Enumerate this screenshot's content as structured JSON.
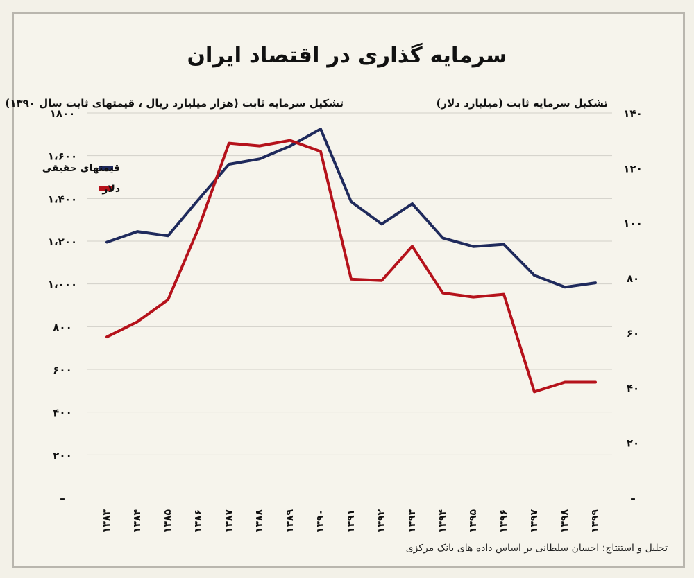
{
  "title": "سرمایه گذاری در اقتصاد ایران",
  "credit": "تحلیل و استنتاج: احسان سلطانی بر اساس داده های بانک مرکزی",
  "colors": {
    "real_prices": "#1f2a5c",
    "dollar": "#b5121b",
    "grid": "#d2d0c9"
  },
  "chart_data": {
    "type": "line",
    "x": [
      "۱۳۸۳",
      "۱۳۸۴",
      "۱۳۸۵",
      "۱۳۸۶",
      "۱۳۸۷",
      "۱۳۸۸",
      "۱۳۸۹",
      "۱۳۹۰",
      "۱۳۹۱",
      "۱۳۹۲",
      "۱۳۹۳",
      "۱۳۹۴",
      "۱۳۹۵",
      "۱۳۹۶",
      "۱۳۹۷",
      "۱۳۹۸",
      "۱۳۹۹"
    ],
    "left_axis": {
      "label": "تشکیل سرمایه ثابت (هزار میلیارد ریال ، قیمتهای ثابت سال ۱۳۹۰)",
      "ylim": [
        0,
        1800
      ],
      "ticks": [
        {
          "value": 0,
          "label": "–"
        },
        {
          "value": 200,
          "label": "۲۰۰"
        },
        {
          "value": 400,
          "label": "۴۰۰"
        },
        {
          "value": 600,
          "label": "۶۰۰"
        },
        {
          "value": 800,
          "label": "۸۰۰"
        },
        {
          "value": 1000,
          "label": "۱،۰۰۰"
        },
        {
          "value": 1200,
          "label": "۱،۲۰۰"
        },
        {
          "value": 1400,
          "label": "۱،۴۰۰"
        },
        {
          "value": 1600,
          "label": "۱،۶۰۰"
        },
        {
          "value": 1800,
          "label": "۱۸۰۰"
        }
      ]
    },
    "right_axis": {
      "label": "تشکیل سرمایه ثابت (میلیارد دلار)",
      "ylim": [
        0,
        140
      ],
      "ticks": [
        {
          "value": 0,
          "label": "–"
        },
        {
          "value": 20,
          "label": "۲۰"
        },
        {
          "value": 40,
          "label": "۴۰"
        },
        {
          "value": 60,
          "label": "۶۰"
        },
        {
          "value": 80,
          "label": "۸۰"
        },
        {
          "value": 100,
          "label": "۱۰۰"
        },
        {
          "value": 120,
          "label": "۱۲۰"
        },
        {
          "value": 140,
          "label": "۱۴۰"
        }
      ]
    },
    "series": [
      {
        "name": "قیمتهای حقیقی",
        "axis": "left",
        "values": [
          1195,
          1245,
          1225,
          1395,
          1560,
          1585,
          1645,
          1725,
          1385,
          1280,
          1375,
          1215,
          1175,
          1185,
          1040,
          985,
          1005
        ]
      },
      {
        "name": "دلار",
        "axis": "right",
        "values": [
          58.5,
          64,
          72,
          98,
          129,
          128,
          130,
          126,
          79.5,
          79,
          91.5,
          74.5,
          73,
          74,
          38.5,
          42,
          42
        ]
      }
    ],
    "legend_position": "top-left",
    "grid": true
  }
}
